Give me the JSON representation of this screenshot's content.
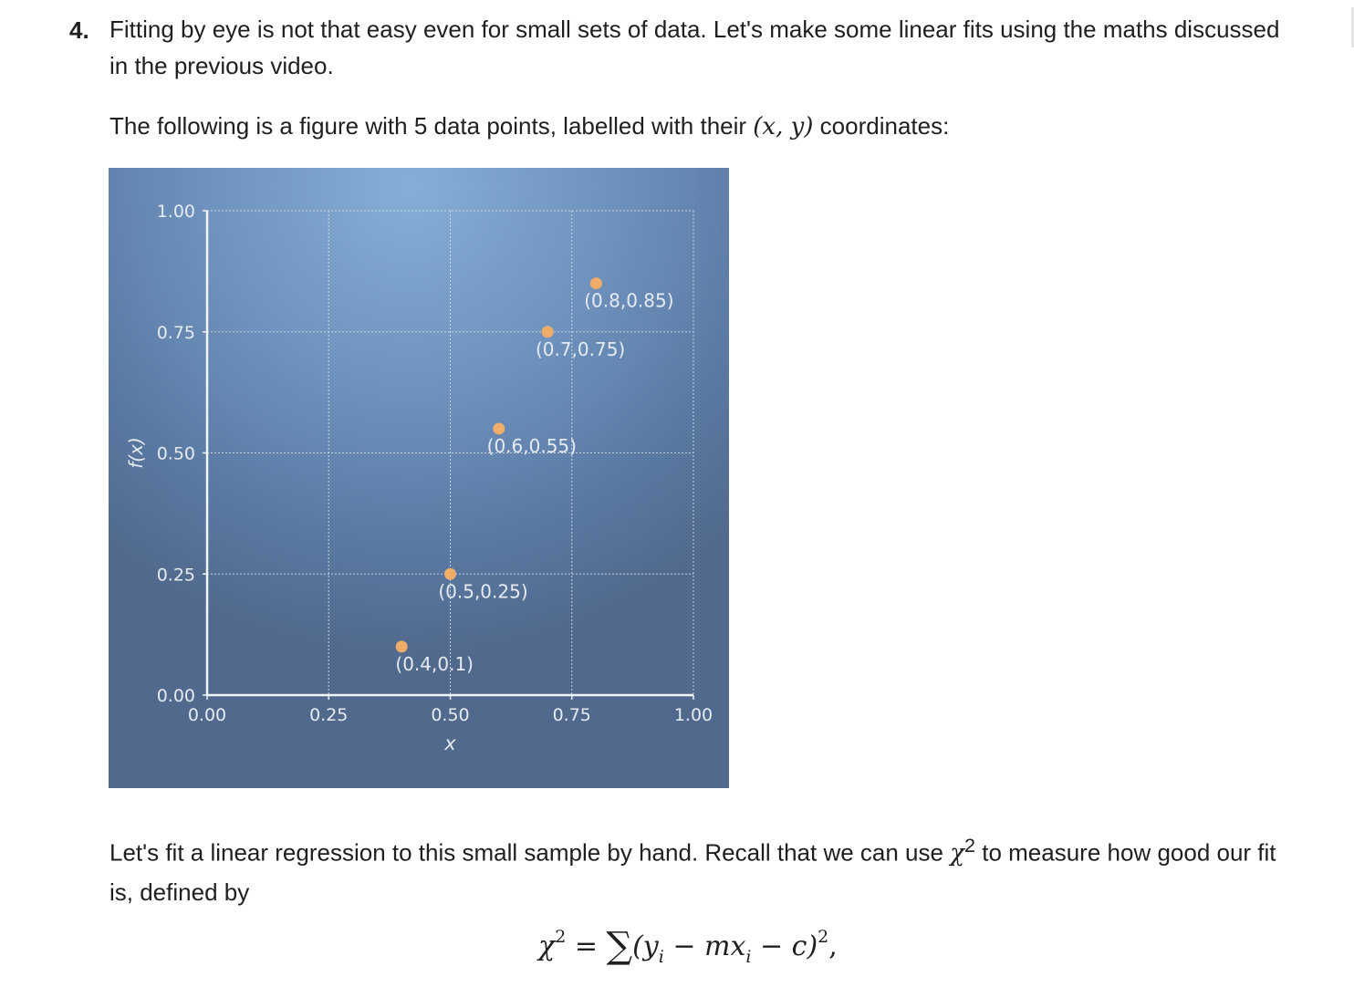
{
  "question": {
    "number": "4.",
    "text": "Fitting by eye is not that easy even for small sets of data. Let's make some linear fits using the maths discussed in the previous video."
  },
  "figure_intro": {
    "before": "The following is a figure with 5 data points, labelled with their ",
    "coords": "(x, y)",
    "after": " coordinates:"
  },
  "chart_data": {
    "type": "scatter",
    "xlabel": "x",
    "ylabel": "f(x)",
    "xlim": [
      0,
      1
    ],
    "ylim": [
      0,
      1
    ],
    "x_ticks": [
      "0.00",
      "0.25",
      "0.50",
      "0.75",
      "1.00"
    ],
    "y_ticks": [
      "0.00",
      "0.25",
      "0.50",
      "0.75",
      "1.00"
    ],
    "grid": true,
    "point_color": "#f0ad6a",
    "points": [
      {
        "x": 0.4,
        "y": 0.1,
        "label": "(0.4,0.1)"
      },
      {
        "x": 0.5,
        "y": 0.25,
        "label": "(0.5,0.25)"
      },
      {
        "x": 0.6,
        "y": 0.55,
        "label": "(0.6,0.55)"
      },
      {
        "x": 0.7,
        "y": 0.75,
        "label": "(0.7,0.75)"
      },
      {
        "x": 0.8,
        "y": 0.85,
        "label": "(0.8,0.85)"
      }
    ]
  },
  "recall": {
    "before": "Let's fit a linear regression to this small sample by hand. Recall that we can use ",
    "chi": "χ",
    "sup": "2",
    "after": " to measure how good our fit is, defined by"
  },
  "equation": {
    "chi": "χ",
    "sup": "2",
    "equals": " = ",
    "sigma": "∑",
    "body_open": "(y",
    "sub_i": "i",
    "minus_m": " − mx",
    "sub_i2": "i",
    "minus_c": " − c)",
    "sup2": "2",
    "tail": ","
  }
}
